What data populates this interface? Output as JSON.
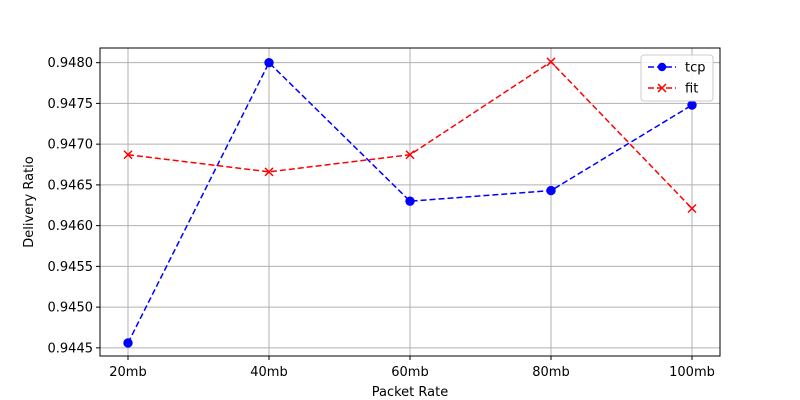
{
  "chart_data": {
    "type": "line",
    "xlabel": "Packet Rate",
    "ylabel": "Delivery Ratio",
    "categories": [
      "20mb",
      "40mb",
      "60mb",
      "80mb",
      "100mb"
    ],
    "ylim": [
      0.9444,
      0.94818
    ],
    "yticks": [
      0.9445,
      0.945,
      0.9455,
      0.946,
      0.9465,
      0.947,
      0.9475,
      0.948
    ],
    "ytick_labels": [
      "0.9445",
      "0.9450",
      "0.9455",
      "0.9460",
      "0.9465",
      "0.9470",
      "0.9475",
      "0.9480"
    ],
    "grid": true,
    "legend_position": "top-right",
    "series": [
      {
        "name": "tcp",
        "color": "#0000ff",
        "marker": "circle",
        "linestyle": "dashed",
        "values": [
          0.94456,
          0.948,
          0.9463,
          0.94643,
          0.94748
        ]
      },
      {
        "name": "fit",
        "color": "#ff0000",
        "marker": "x",
        "linestyle": "dashed",
        "values": [
          0.94687,
          0.94666,
          0.94687,
          0.94801,
          0.94621
        ]
      }
    ]
  }
}
